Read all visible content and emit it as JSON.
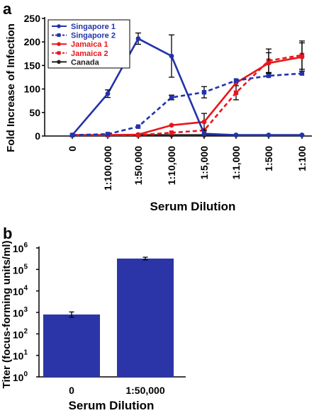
{
  "chart_data": [
    {
      "panel": "a",
      "type": "line",
      "categories": [
        "0",
        "1:100,000",
        "1:50,000",
        "1:10,000",
        "1:5,000",
        "1:1,000",
        "1:500",
        "1:100"
      ],
      "ylabel": "Fold Increase of Infection",
      "xlabel": "Serum Dilution",
      "ylim": [
        0,
        250
      ],
      "yticks": [
        0,
        50,
        100,
        150,
        200,
        250
      ],
      "legend_position": "top-left",
      "series": [
        {
          "name": "Singapore 1",
          "color": "#2233aa",
          "dash": "solid",
          "marker": "circle",
          "values": [
            2,
            90,
            207,
            170,
            5,
            2,
            2,
            2
          ],
          "errors": [
            0,
            8,
            12,
            45,
            0,
            0,
            0,
            0
          ]
        },
        {
          "name": "Singapore 2",
          "color": "#2233aa",
          "dash": "dashed",
          "marker": "square",
          "values": [
            2,
            4,
            20,
            82,
            93,
            118,
            128,
            133
          ],
          "errors": [
            0,
            0,
            0,
            5,
            12,
            0,
            0,
            0
          ]
        },
        {
          "name": "Jamaica 1",
          "color": "#e8161c",
          "dash": "solid",
          "marker": "circle",
          "values": [
            2,
            2,
            3,
            23,
            30,
            113,
            155,
            168
          ],
          "errors": [
            0,
            0,
            0,
            0,
            18,
            0,
            22,
            30
          ]
        },
        {
          "name": "Jamaica 2",
          "color": "#e8161c",
          "dash": "dashed",
          "marker": "square",
          "values": [
            2,
            2,
            2,
            7,
            12,
            92,
            160,
            172
          ],
          "errors": [
            0,
            0,
            0,
            0,
            0,
            15,
            25,
            30
          ]
        },
        {
          "name": "Canada",
          "color": "#222222",
          "dash": "solid",
          "marker": "circle",
          "values": [
            2,
            2,
            2,
            2,
            2,
            2,
            2,
            2
          ],
          "errors": [
            0,
            0,
            0,
            0,
            0,
            0,
            0,
            0
          ]
        }
      ]
    },
    {
      "panel": "b",
      "type": "bar",
      "categories": [
        "0",
        "1:50,000"
      ],
      "values": [
        800,
        320000
      ],
      "errors_low": [
        600,
        280000
      ],
      "errors_high": [
        1050,
        370000
      ],
      "color": "#2b35a8",
      "ylabel": "Titer (focus-forming units/ml)",
      "xlabel": "Serum Dilution",
      "yscale": "log",
      "ylim": [
        1,
        1000000
      ],
      "ytick_base": "10",
      "ytick_exponents": [
        "0",
        "1",
        "2",
        "3",
        "4",
        "5",
        "6"
      ]
    }
  ]
}
